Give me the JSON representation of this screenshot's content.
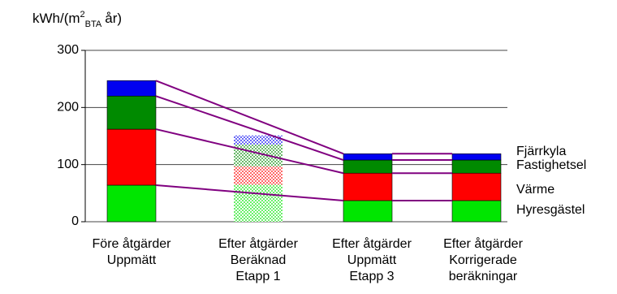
{
  "chart_data": {
    "type": "stacked_bar",
    "y_label": {
      "main": "kWh/(m",
      "sup": "2",
      "sub": "BTA",
      "end": "år)"
    },
    "categories": [
      [
        "Före åtgärder",
        "Uppmätt"
      ],
      [
        "Efter åtgärder",
        "Beräknad",
        "Etapp 1"
      ],
      [
        "Efter åtgärder",
        "Uppmätt",
        "Etapp 3"
      ],
      [
        "Efter åtgärder",
        "Korrigerade",
        "beräkningar"
      ]
    ],
    "bar_styles": [
      "solid",
      "dotted",
      "solid",
      "solid"
    ],
    "connected_categories": [
      0,
      2,
      3
    ],
    "connector_color": "#800080",
    "series": [
      {
        "name": "Hyresgästel",
        "color": "#00e600",
        "values": [
          64,
          65,
          37,
          37
        ]
      },
      {
        "name": "Värme",
        "color": "#ff0000",
        "values": [
          98,
          32,
          48,
          48
        ]
      },
      {
        "name": "Fastighetsel",
        "color": "#008a00",
        "values": [
          58,
          38,
          23,
          23
        ]
      },
      {
        "name": "Fjärrkyla",
        "color": "#0000f0",
        "values": [
          27,
          16,
          11,
          11
        ]
      }
    ],
    "ylim": [
      0,
      300
    ],
    "yticks": [
      0,
      100,
      200,
      300
    ],
    "grid": true
  }
}
